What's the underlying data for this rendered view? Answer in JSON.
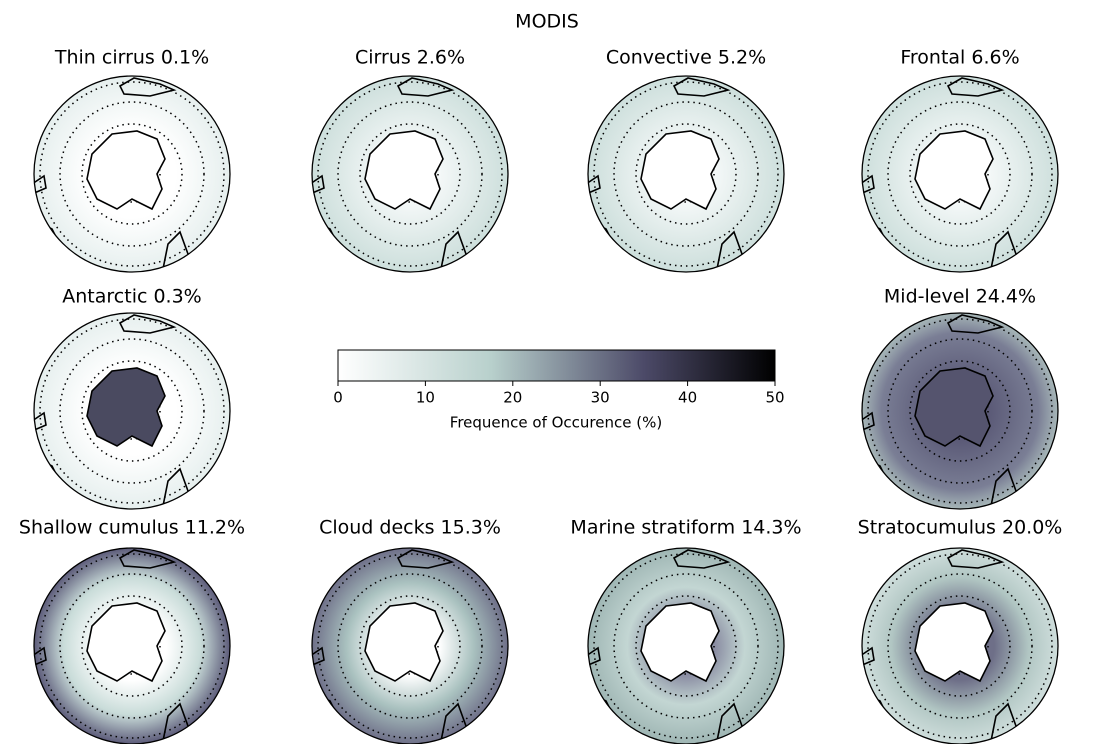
{
  "title": "MODIS",
  "panels": [
    {
      "title": "Thin cirrus 0.1%"
    },
    {
      "title": "Cirrus 2.6%"
    },
    {
      "title": "Convective 5.2%"
    },
    {
      "title": "Frontal 6.6%"
    },
    {
      "title": "Antarctic 0.3%"
    },
    {
      "title": "Mid-level 24.4%"
    },
    {
      "title": "Shallow cumulus 11.2%"
    },
    {
      "title": "Cloud decks 15.3%"
    },
    {
      "title": "Marine stratiform 14.3%"
    },
    {
      "title": "Stratocumulus 20.0%"
    }
  ],
  "colorbar": {
    "label": "Frequence of Occurence (%)",
    "lim": [
      0,
      50
    ],
    "ticks": [
      0,
      10,
      20,
      30,
      40,
      50
    ]
  }
}
